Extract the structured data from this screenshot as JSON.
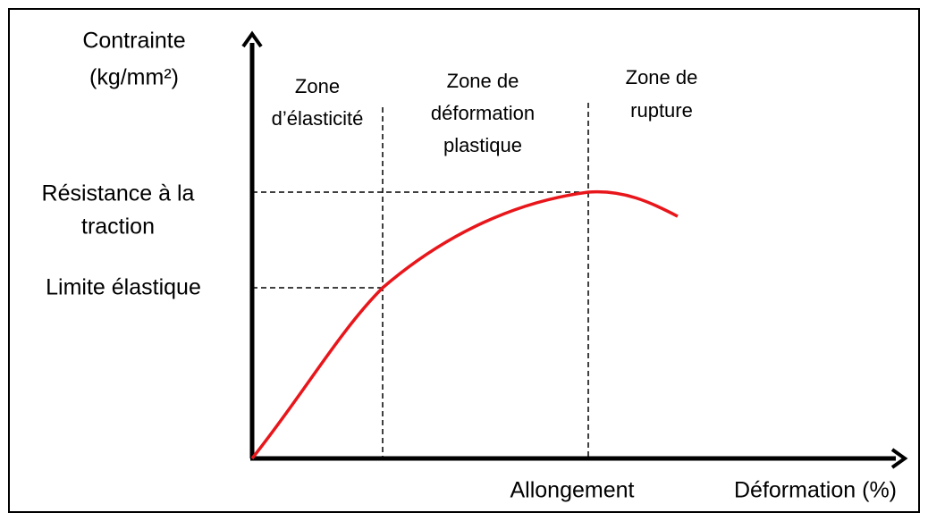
{
  "y_axis_label": [
    "Contrainte",
    "(kg/mm²)"
  ],
  "zones": [
    {
      "lines": [
        "Zone",
        "d’élasticité"
      ]
    },
    {
      "lines": [
        "Zone de",
        "déformation",
        "plastique"
      ]
    },
    {
      "lines": [
        "Zone de",
        "rupture"
      ]
    }
  ],
  "y_levels": [
    {
      "lines": [
        "Résistance à la",
        "traction"
      ]
    },
    {
      "lines": [
        "Limite élastique"
      ]
    }
  ],
  "x_labels": [
    "Allongement",
    "Déformation (%)"
  ]
}
